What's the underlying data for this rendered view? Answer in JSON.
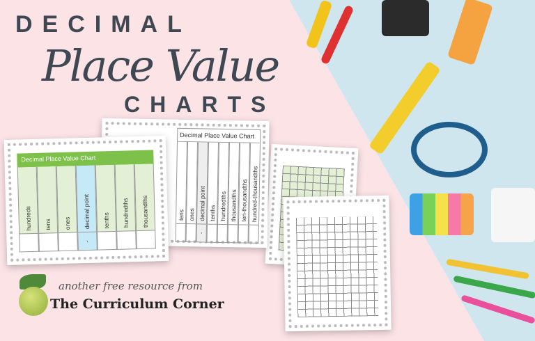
{
  "header": {
    "line1": "DECIMAL",
    "line2": "Place Value",
    "line3": "CHARTS"
  },
  "card1": {
    "title": "Decimal Place Value Chart",
    "columns": [
      "hundreds",
      "tens",
      "ones",
      "decimal point",
      "tenths",
      "hundredths",
      "thousandths"
    ],
    "decimal_cell": ".",
    "header_color": "#7dc04a"
  },
  "card2": {
    "title": "Decimal Place Value Chart",
    "columns": [
      "tens",
      "ones",
      "decimal point",
      "tenths",
      "hundredths",
      "thousandths",
      "ten-thousandths",
      "hundred-thousandths"
    ],
    "decimal_cell": "."
  },
  "footer": {
    "tagline": "another free resource from",
    "brand": "The Curriculum Corner"
  },
  "colors": {
    "background_pink": "#fbe3e6",
    "background_blue": "#cfe6ef",
    "title": "#3e4752"
  }
}
